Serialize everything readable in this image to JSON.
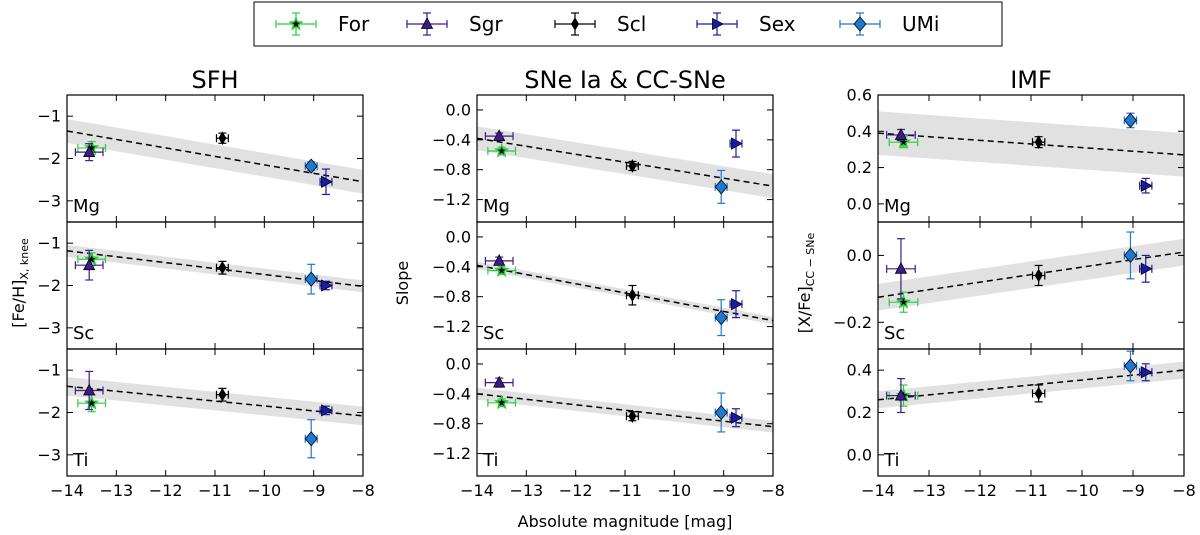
{
  "legend": [
    {
      "name": "For",
      "color": "#2ecc40",
      "marker": "star"
    },
    {
      "name": "Sgr",
      "color": "#3d1c8a",
      "marker": "triangle-up"
    },
    {
      "name": "Scl",
      "color": "#000000",
      "marker": "diamond-thin"
    },
    {
      "name": "Sex",
      "color": "#1a1aa8",
      "marker": "triangle-right"
    },
    {
      "name": "UMi",
      "color": "#1f78d1",
      "marker": "diamond"
    }
  ],
  "columns": [
    {
      "title": "SFH",
      "ylabel": "[Fe/H]",
      "ylabel_sub": "X, knee"
    },
    {
      "title": "SNe Ia & CC-SNe",
      "ylabel": "Slope",
      "ylabel_sub": ""
    },
    {
      "title": "IMF",
      "ylabel": "[X/Fe]",
      "ylabel_sub": "CC − SNe"
    }
  ],
  "xlabel": "Absolute magnitude [mag]",
  "x_ticks": [
    "−14",
    "−13",
    "−12",
    "−11",
    "−10",
    "−9",
    "−8"
  ],
  "chart_data": {
    "type": "scatter",
    "xlim": [
      -14,
      -8
    ],
    "x_ticks": [
      -14,
      -13,
      -12,
      -11,
      -10,
      -9,
      -8
    ],
    "galaxy_mag": {
      "For": -13.5,
      "Sgr": -13.55,
      "Scl": -10.85,
      "Sex": -8.75,
      "UMi": -9.05
    },
    "galaxy_order": [
      "For",
      "Sgr",
      "Scl",
      "Sex",
      "UMi"
    ],
    "panels": [
      {
        "column": 0,
        "row": 0,
        "element": "Mg",
        "ylim": [
          -3.5,
          -0.5
        ],
        "yticks": [
          -3,
          -2,
          -1
        ],
        "fit": [
          -1.35,
          -2.55
        ],
        "band": 0.28,
        "points": {
          "For": [
            -1.75,
            0.15
          ],
          "Sgr": [
            -1.85,
            0.2
          ],
          "Scl": [
            -1.52,
            0.12
          ],
          "Sex": [
            -2.55,
            0.3
          ],
          "UMi": [
            -2.18,
            0.1
          ]
        }
      },
      {
        "column": 0,
        "row": 1,
        "element": "Sc",
        "ylim": [
          -3.5,
          -0.5
        ],
        "yticks": [
          -3,
          -2,
          -1
        ],
        "fit": [
          -1.18,
          -2.02
        ],
        "band": 0.14,
        "points": {
          "For": [
            -1.38,
            0.15
          ],
          "Sgr": [
            -1.52,
            0.35
          ],
          "Scl": [
            -1.58,
            0.15
          ],
          "Sex": [
            -2.0,
            0.1
          ],
          "UMi": [
            -1.85,
            0.35
          ]
        }
      },
      {
        "column": 0,
        "row": 2,
        "element": "Ti",
        "ylim": [
          -3.5,
          -0.5
        ],
        "yticks": [
          -3,
          -2,
          -1
        ],
        "fit": [
          -1.38,
          -2.08
        ],
        "band": 0.22,
        "points": {
          "For": [
            -1.78,
            0.2
          ],
          "Sgr": [
            -1.48,
            0.45
          ],
          "Scl": [
            -1.58,
            0.15
          ],
          "Sex": [
            -1.95,
            0.1
          ],
          "UMi": [
            -2.62,
            0.45
          ]
        }
      },
      {
        "column": 1,
        "row": 0,
        "element": "Mg",
        "ylim": [
          -1.5,
          0.2
        ],
        "yticks": [
          -1.2,
          -0.8,
          -0.4,
          0.0
        ],
        "fit": [
          -0.38,
          -1.02
        ],
        "band": 0.16,
        "points": {
          "For": [
            -0.55,
            0.05
          ],
          "Sgr": [
            -0.35,
            0.04
          ],
          "Scl": [
            -0.75,
            0.06
          ],
          "Sex": [
            -0.45,
            0.18
          ],
          "UMi": [
            -1.03,
            0.22
          ]
        }
      },
      {
        "column": 1,
        "row": 1,
        "element": "Sc",
        "ylim": [
          -1.5,
          0.2
        ],
        "yticks": [
          -1.2,
          -0.8,
          -0.4,
          0.0
        ],
        "fit": [
          -0.38,
          -1.12
        ],
        "band": 0.05,
        "points": {
          "For": [
            -0.45,
            0.05
          ],
          "Sgr": [
            -0.32,
            0.05
          ],
          "Scl": [
            -0.78,
            0.13
          ],
          "Sex": [
            -0.9,
            0.18
          ],
          "UMi": [
            -1.08,
            0.24
          ]
        }
      },
      {
        "column": 1,
        "row": 2,
        "element": "Ti",
        "ylim": [
          -1.5,
          0.2
        ],
        "yticks": [
          -1.2,
          -0.8,
          -0.4,
          0.0
        ],
        "fit": [
          -0.4,
          -0.84
        ],
        "band": 0.08,
        "points": {
          "For": [
            -0.52,
            0.05
          ],
          "Sgr": [
            -0.25,
            0.06
          ],
          "Scl": [
            -0.7,
            0.06
          ],
          "Sex": [
            -0.72,
            0.12
          ],
          "UMi": [
            -0.65,
            0.26
          ]
        }
      },
      {
        "column": 2,
        "row": 0,
        "element": "Mg",
        "ylim": [
          -0.1,
          0.6
        ],
        "yticks": [
          0.0,
          0.2,
          0.4,
          0.6
        ],
        "fit": [
          0.39,
          0.27
        ],
        "band": 0.12,
        "points": {
          "For": [
            0.34,
            0.03
          ],
          "Sgr": [
            0.38,
            0.03
          ],
          "Scl": [
            0.34,
            0.03
          ],
          "Sex": [
            0.1,
            0.04
          ],
          "UMi": [
            0.46,
            0.04
          ]
        }
      },
      {
        "column": 2,
        "row": 1,
        "element": "Sc",
        "ylim": [
          -0.28,
          0.1
        ],
        "yticks": [
          -0.2,
          0.0
        ],
        "fit": [
          -0.125,
          0.01
        ],
        "band": 0.04,
        "points": {
          "For": [
            -0.14,
            0.03
          ],
          "Sgr": [
            -0.04,
            0.09
          ],
          "Scl": [
            -0.06,
            0.03
          ],
          "Sex": [
            -0.04,
            0.04
          ],
          "UMi": [
            0.0,
            0.07
          ]
        }
      },
      {
        "column": 2,
        "row": 2,
        "element": "Ti",
        "ylim": [
          -0.1,
          0.5
        ],
        "yticks": [
          0.0,
          0.2,
          0.4
        ],
        "fit": [
          0.26,
          0.4
        ],
        "band": 0.04,
        "points": {
          "For": [
            0.28,
            0.05
          ],
          "Sgr": [
            0.28,
            0.08
          ],
          "Scl": [
            0.29,
            0.04
          ],
          "Sex": [
            0.39,
            0.04
          ],
          "UMi": [
            0.42,
            0.07
          ]
        }
      }
    ]
  }
}
